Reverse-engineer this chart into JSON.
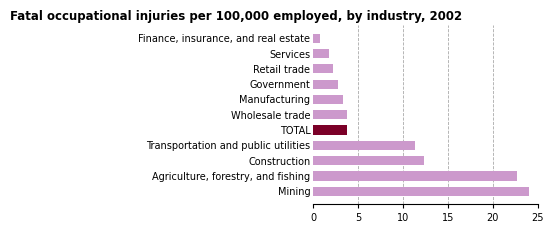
{
  "title": "Fatal occupational injuries per 100,000 employed, by industry, 2002",
  "categories": [
    "Mining",
    "Agriculture, forestry, and fishing",
    "Construction",
    "Transportation and public utilities",
    "TOTAL",
    "Wholesale trade",
    "Manufacturing",
    "Government",
    "Retail trade",
    "Services",
    "Finance, insurance, and real estate"
  ],
  "values": [
    24.0,
    22.7,
    12.3,
    11.3,
    3.8,
    3.8,
    3.3,
    2.8,
    2.2,
    1.8,
    0.8
  ],
  "bar_colors": [
    "#cc99cc",
    "#cc99cc",
    "#cc99cc",
    "#cc99cc",
    "#7b0028",
    "#cc99cc",
    "#cc99cc",
    "#cc99cc",
    "#cc99cc",
    "#cc99cc",
    "#cc99cc"
  ],
  "xlim": [
    0,
    25
  ],
  "xticks": [
    0,
    5,
    10,
    15,
    20,
    25
  ],
  "grid_color": "#aaaaaa",
  "background_color": "#ffffff",
  "title_fontsize": 8.5,
  "tick_fontsize": 7,
  "label_fontsize": 7
}
